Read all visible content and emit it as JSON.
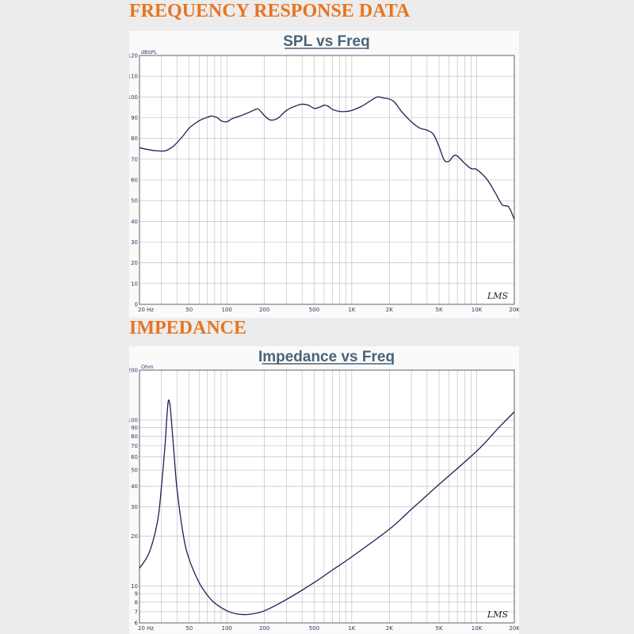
{
  "headings": {
    "spl": "FREQUENCY RESPONSE DATA",
    "impedance": "IMPEDANCE"
  },
  "colors": {
    "heading": "#e87420",
    "chart_title": "#4a6378",
    "curve": "#1c2156",
    "tick_label": "#2b3a6b"
  },
  "x_tick_labels": [
    {
      "f": 20,
      "label": "20 Hz"
    },
    {
      "f": 50,
      "label": "50"
    },
    {
      "f": 100,
      "label": "100"
    },
    {
      "f": 200,
      "label": "200"
    },
    {
      "f": 500,
      "label": "500"
    },
    {
      "f": 1000,
      "label": "1K"
    },
    {
      "f": 2000,
      "label": "2K"
    },
    {
      "f": 5000,
      "label": "5K"
    },
    {
      "f": 10000,
      "label": "10K"
    },
    {
      "f": 20000,
      "label": "20K"
    }
  ],
  "chart_data": [
    {
      "type": "line",
      "title": "SPL vs Freq",
      "ylabel": "dBSPL",
      "xscale": "log",
      "xlim": [
        20,
        20000
      ],
      "ylim": [
        0,
        120
      ],
      "yticks": [
        0,
        10,
        20,
        30,
        40,
        50,
        60,
        70,
        80,
        90,
        100,
        110,
        120
      ],
      "grid": true,
      "watermark": "LMS",
      "series": [
        {
          "x": [
            20,
            24,
            28,
            32,
            36,
            40,
            45,
            50,
            55,
            60,
            65,
            70,
            75,
            80,
            85,
            90,
            100,
            110,
            130,
            150,
            170,
            180,
            200,
            220,
            240,
            260,
            300,
            350,
            400,
            450,
            500,
            550,
            600,
            650,
            700,
            800,
            900,
            1000,
            1200,
            1400,
            1600,
            1800,
            2000,
            2200,
            2500,
            3000,
            3500,
            4000,
            4500,
            5000,
            5500,
            6000,
            6500,
            7000,
            8000,
            9000,
            10000,
            12000,
            14000,
            16000,
            18000,
            20000
          ],
          "y": [
            75.5,
            74.5,
            74,
            74,
            75.5,
            78,
            81.5,
            85,
            87,
            88.5,
            89.5,
            90.2,
            90.8,
            90.5,
            89.8,
            88.5,
            88,
            89.5,
            91,
            92.5,
            94,
            94,
            91,
            89,
            89,
            90,
            93.5,
            95.5,
            96.5,
            96,
            94.5,
            95,
            96,
            95.5,
            94,
            93,
            93,
            93.5,
            95.5,
            98,
            100,
            99.5,
            99,
            97.5,
            93,
            88,
            85,
            84,
            82,
            76,
            69.5,
            69,
            71.5,
            71.5,
            68,
            65.5,
            65,
            60.5,
            54,
            48,
            47,
            41
          ]
        }
      ]
    },
    {
      "type": "line",
      "title": "Impedance vs Freq",
      "ylabel": "Ohm",
      "xscale": "log",
      "yscale": "log",
      "xlim": [
        20,
        20000
      ],
      "ylim": [
        6,
        200
      ],
      "yticks": [
        6,
        7,
        8,
        9,
        10,
        20,
        30,
        40,
        50,
        60,
        70,
        80,
        90,
        100,
        200
      ],
      "grid": true,
      "watermark": "LMS",
      "series": [
        {
          "x": [
            20,
            24,
            28,
            30,
            32,
            33,
            34,
            35,
            36,
            38,
            40,
            45,
            50,
            60,
            70,
            80,
            100,
            120,
            150,
            200,
            300,
            500,
            700,
            1000,
            2000,
            3000,
            5000,
            10000,
            15000,
            20000
          ],
          "y": [
            12.8,
            16,
            25,
            40,
            70,
            100,
            130,
            125,
            100,
            60,
            38,
            20,
            14.5,
            10.5,
            8.8,
            7.9,
            7.1,
            6.8,
            6.75,
            7.1,
            8.3,
            10.5,
            12.5,
            15,
            22,
            29,
            41,
            65,
            90,
            112
          ]
        }
      ]
    }
  ]
}
